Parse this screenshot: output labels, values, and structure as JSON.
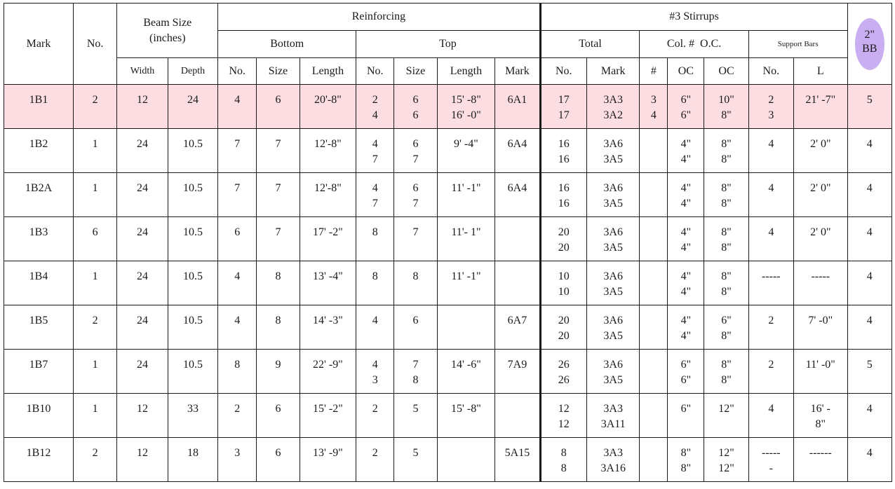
{
  "headers": {
    "mark": "Mark",
    "no": "No.",
    "beam_size": [
      "Beam Size",
      "(inches)"
    ],
    "reinforcing": "Reinforcing",
    "stirrups": "#3 Stirrups",
    "bottom": "Bottom",
    "top": "Top",
    "total": "Total",
    "col_oc": "Col. #  O.C.",
    "support_bars": "Support Bars",
    "bb": [
      "2\"",
      "BB"
    ],
    "width": "Width",
    "depth": "Depth",
    "b_no": "No.",
    "b_size": "Size",
    "b_length": "Length",
    "t_no": "No.",
    "t_size": "Size",
    "t_length": "Length",
    "t_mark": "Mark",
    "s_no": "No.",
    "s_mark": "Mark",
    "s_hash": "#",
    "s_oc1": "OC",
    "s_oc2": "OC",
    "sb_no": "No.",
    "sb_l": "L"
  },
  "rows": [
    {
      "mark": "1B1",
      "no": "2",
      "width": "12",
      "depth": "24",
      "b_no": "4",
      "b_size": "6",
      "b_length": "20'-8\"",
      "t_no": [
        "2",
        "4"
      ],
      "t_size": [
        "6",
        "6"
      ],
      "t_length": [
        "15' -8\"",
        "16' -0\""
      ],
      "t_mark": "6A1",
      "s_total": [
        "17",
        "17"
      ],
      "s_mark": [
        "3A3",
        "3A2"
      ],
      "s_hash": [
        "3",
        "4"
      ],
      "s_oc1": [
        "6\"",
        "6\""
      ],
      "s_oc2": [
        "10\"",
        "8\""
      ],
      "sb_no": [
        "2",
        "3"
      ],
      "sb_l": [
        "21' -7\""
      ],
      "bb": "5",
      "highlight": true
    },
    {
      "mark": "1B2",
      "no": "1",
      "width": "24",
      "depth": "10.5",
      "b_no": "7",
      "b_size": "7",
      "b_length": "12'-8\"",
      "t_no": [
        "4",
        "7"
      ],
      "t_size": [
        "6",
        "7"
      ],
      "t_length": [
        "9' -4\""
      ],
      "t_mark": "6A4",
      "s_total": [
        "16",
        "16"
      ],
      "s_mark": [
        "3A6",
        "3A5"
      ],
      "s_hash": [],
      "s_oc1": [
        "4\"",
        "4\""
      ],
      "s_oc2": [
        "8\"",
        "8\""
      ],
      "sb_no": [
        "4"
      ],
      "sb_l": [
        "2' 0\""
      ],
      "bb": "4"
    },
    {
      "mark": "1B2A",
      "no": "1",
      "width": "24",
      "depth": "10.5",
      "b_no": "7",
      "b_size": "7",
      "b_length": "12'-8\"",
      "t_no": [
        "4",
        "7"
      ],
      "t_size": [
        "6",
        "7"
      ],
      "t_length": [
        "11' -1\""
      ],
      "t_mark": "6A4",
      "s_total": [
        "16",
        "16"
      ],
      "s_mark": [
        "3A6",
        "3A5"
      ],
      "s_hash": [],
      "s_oc1": [
        "4\"",
        "4\""
      ],
      "s_oc2": [
        "8\"",
        "8\""
      ],
      "sb_no": [
        "4"
      ],
      "sb_l": [
        "2' 0\""
      ],
      "bb": "4"
    },
    {
      "mark": "1B3",
      "no": "6",
      "width": "24",
      "depth": "10.5",
      "b_no": "6",
      "b_size": "7",
      "b_length": "17' -2\"",
      "t_no": [
        "8"
      ],
      "t_size": [
        "7"
      ],
      "t_length": [
        "11'- 1\""
      ],
      "t_mark": "",
      "s_total": [
        "20",
        "20"
      ],
      "s_mark": [
        "3A6",
        "3A5"
      ],
      "s_hash": [],
      "s_oc1": [
        "4\"",
        "4\""
      ],
      "s_oc2": [
        "8\"",
        "8\""
      ],
      "sb_no": [
        "4"
      ],
      "sb_l": [
        "2' 0\""
      ],
      "bb": "4"
    },
    {
      "mark": "1B4",
      "no": "1",
      "width": "24",
      "depth": "10.5",
      "b_no": "4",
      "b_size": "8",
      "b_length": "13' -4\"",
      "t_no": [
        "8"
      ],
      "t_size": [
        "8"
      ],
      "t_length": [
        "11' -1\""
      ],
      "t_mark": "",
      "s_total": [
        "10",
        "10"
      ],
      "s_mark": [
        "3A6",
        "3A5"
      ],
      "s_hash": [],
      "s_oc1": [
        "4\"",
        "4\""
      ],
      "s_oc2": [
        "8\"",
        "8\""
      ],
      "sb_no": [
        "-----"
      ],
      "sb_l": [
        "-----"
      ],
      "bb": "4"
    },
    {
      "mark": "1B5",
      "no": "2",
      "width": "24",
      "depth": "10.5",
      "b_no": "4",
      "b_size": "8",
      "b_length": "14' -3\"",
      "t_no": [
        "4"
      ],
      "t_size": [
        "6"
      ],
      "t_length": [],
      "t_mark": "6A7",
      "s_total": [
        "20",
        "20"
      ],
      "s_mark": [
        "3A6",
        "3A5"
      ],
      "s_hash": [],
      "s_oc1": [
        "4\"",
        "4\""
      ],
      "s_oc2": [
        "6\"",
        "8\""
      ],
      "sb_no": [
        "2"
      ],
      "sb_l": [
        "7' -0\""
      ],
      "bb": "4"
    },
    {
      "mark": "1B7",
      "no": "1",
      "width": "24",
      "depth": "10.5",
      "b_no": "8",
      "b_size": "9",
      "b_length": "22' -9\"",
      "t_no": [
        "4",
        "3"
      ],
      "t_size": [
        "7",
        "8"
      ],
      "t_length": [
        "14' -6\""
      ],
      "t_mark": "7A9",
      "s_total": [
        "26",
        "26"
      ],
      "s_mark": [
        "3A6",
        "3A5"
      ],
      "s_hash": [],
      "s_oc1": [
        "6\"",
        "6\""
      ],
      "s_oc2": [
        "8\"",
        "8\""
      ],
      "sb_no": [
        "2"
      ],
      "sb_l": [
        "11' -0\""
      ],
      "bb": "5"
    },
    {
      "mark": "1B10",
      "no": "1",
      "width": "12",
      "depth": "33",
      "b_no": "2",
      "b_size": "6",
      "b_length": "15' -2\"",
      "t_no": [
        "2"
      ],
      "t_size": [
        "5"
      ],
      "t_length": [
        "15' -8\""
      ],
      "t_mark": "",
      "s_total": [
        "12",
        "12"
      ],
      "s_mark": [
        "3A3",
        "3A11"
      ],
      "s_hash": [],
      "s_oc1": [
        "6\""
      ],
      "s_oc2": [
        "12\""
      ],
      "sb_no": [
        "4"
      ],
      "sb_l": [
        "16' -",
        "8\""
      ],
      "bb": "4"
    },
    {
      "mark": "1B12",
      "no": "2",
      "width": "12",
      "depth": "18",
      "b_no": "3",
      "b_size": "6",
      "b_length": "13' -9\"",
      "t_no": [
        "2"
      ],
      "t_size": [
        "5"
      ],
      "t_length": [],
      "t_mark": "5A15",
      "s_total": [
        "8",
        "8"
      ],
      "s_mark": [
        "3A3",
        "3A16"
      ],
      "s_hash": [],
      "s_oc1": [
        "8\"",
        "8\""
      ],
      "s_oc2": [
        "12\"",
        "12\""
      ],
      "sb_no": [
        "-----",
        "-"
      ],
      "sb_l": [
        "------"
      ],
      "bb": "4"
    }
  ]
}
